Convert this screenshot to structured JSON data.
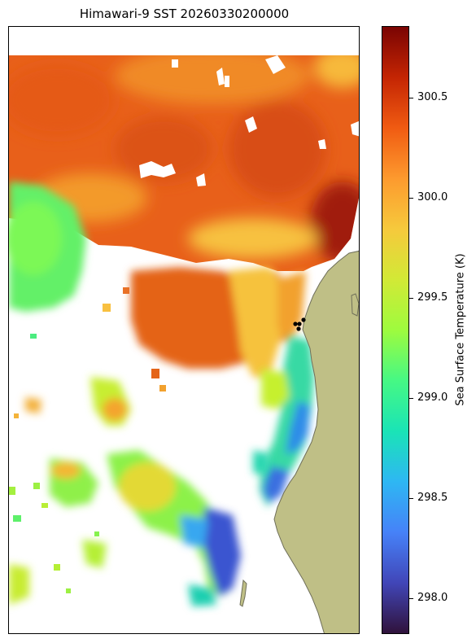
{
  "title": "Himawari-9 SST 20260330200000",
  "colorbar": {
    "label": "Sea Surface Temperature (K)",
    "min": 297.82,
    "max": 300.86,
    "ticks": [
      "298.0",
      "298.5",
      "299.0",
      "299.5",
      "300.0",
      "300.5"
    ],
    "colormap": "turbo"
  },
  "colors": {
    "land": "#bfbf86",
    "coast": "#6f6f5a",
    "station": "#000000"
  }
}
